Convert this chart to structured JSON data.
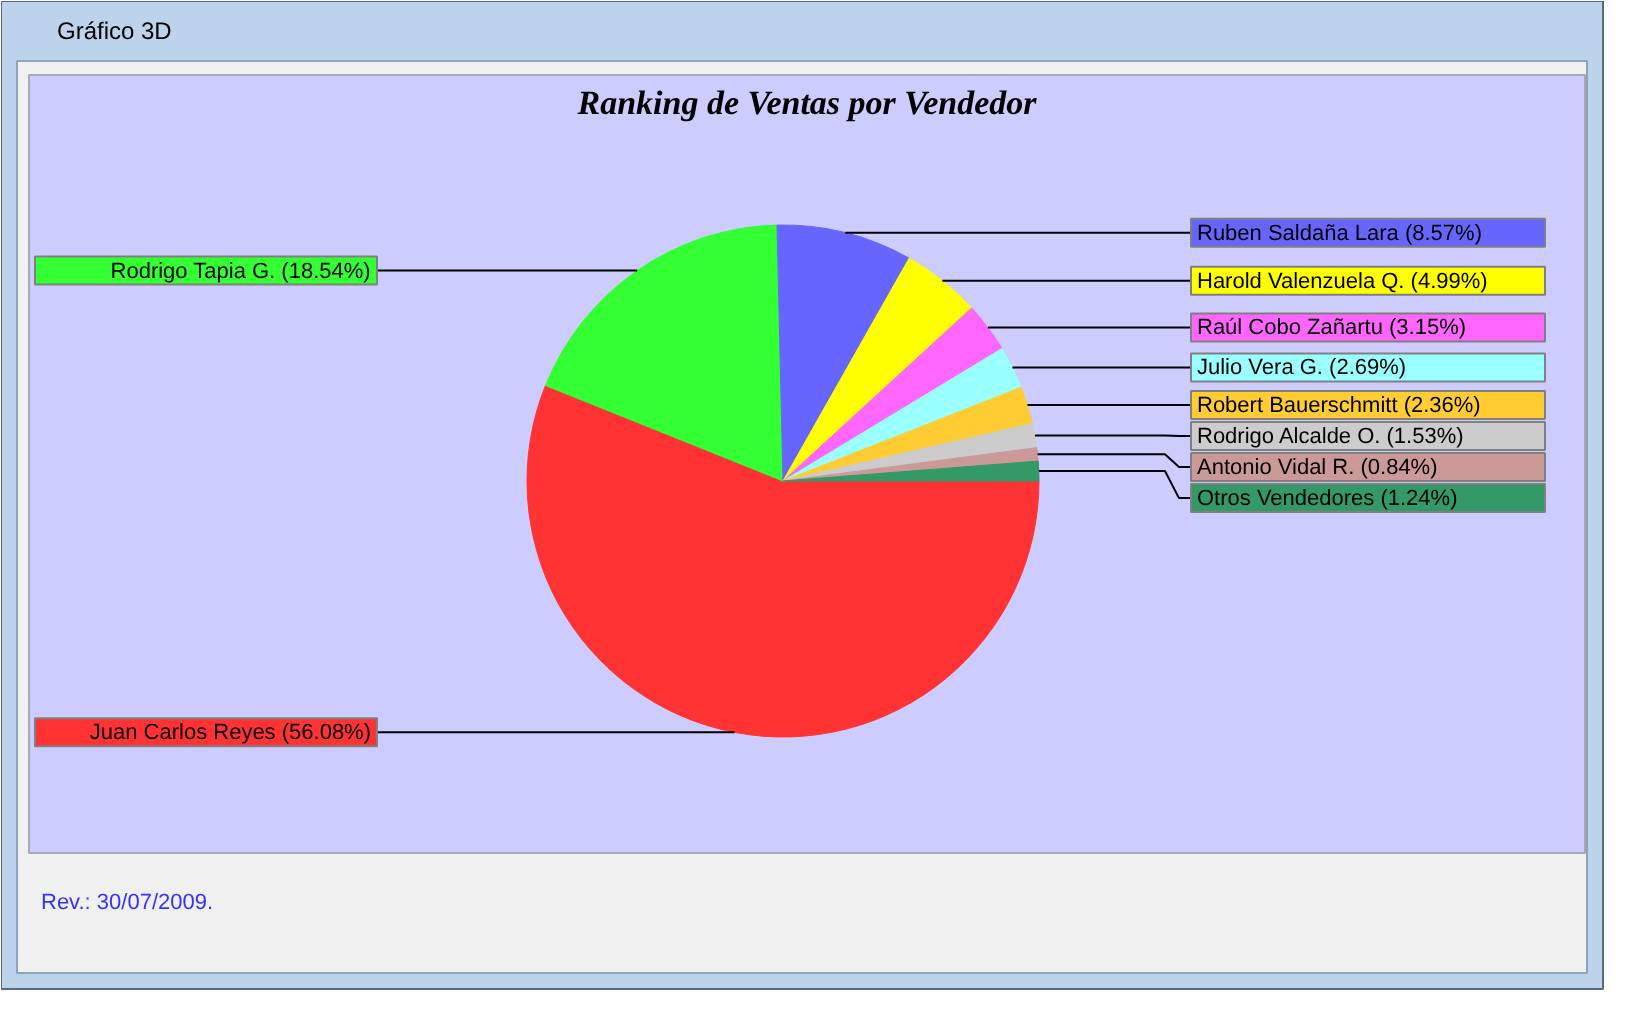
{
  "chart_data": {
    "type": "pie",
    "title": "Ranking de Ventas por Vendedor",
    "categories": [
      "Juan Carlos Reyes (56.08%)",
      "Rodrigo Tapia G. (18.54%)",
      "Ruben Saldaña Lara (8.57%)",
      "Harold Valenzuela Q. (4.99%)",
      "Raúl Cobo Zañartu (3.15%)",
      "Julio Vera G. (2.69%)",
      "Robert Bauerschmitt (2.36%)",
      "Rodrigo Alcalde O. (1.53%)",
      "Antonio Vidal R. (0.84%)",
      "Otros Vendedores (1.24%)"
    ],
    "values": [
      56.08,
      18.54,
      8.57,
      4.99,
      3.15,
      2.69,
      2.36,
      1.53,
      0.84,
      1.24
    ],
    "colors": [
      "#ff3333",
      "#33ff33",
      "#6666ff",
      "#ffff00",
      "#ff66ff",
      "#99ffff",
      "#ffcc33",
      "#cccccc",
      "#cc9999",
      "#339966"
    ],
    "annotations": [
      "Gráfico 3D",
      "Rev.: 30/07/2009."
    ]
  }
}
